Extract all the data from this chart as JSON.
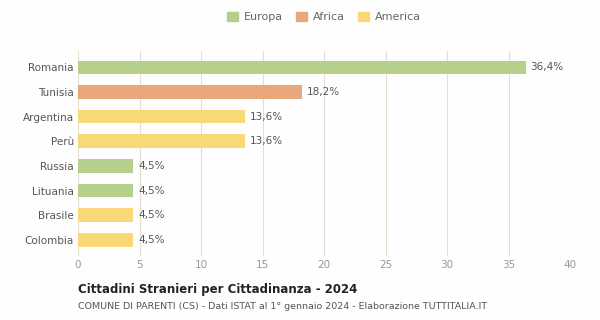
{
  "categories": [
    "Romania",
    "Tunisia",
    "Argentina",
    "Perù",
    "Russia",
    "Lituania",
    "Brasile",
    "Colombia"
  ],
  "values": [
    36.4,
    18.2,
    13.6,
    13.6,
    4.5,
    4.5,
    4.5,
    4.5
  ],
  "labels": [
    "36,4%",
    "18,2%",
    "13,6%",
    "13,6%",
    "4,5%",
    "4,5%",
    "4,5%",
    "4,5%"
  ],
  "colors": [
    "#b5d08a",
    "#e8a87c",
    "#f9d878",
    "#f9d878",
    "#b5d08a",
    "#b5d08a",
    "#f9d878",
    "#f9d878"
  ],
  "legend_labels": [
    "Europa",
    "Africa",
    "America"
  ],
  "legend_colors": [
    "#b5d08a",
    "#e8a87c",
    "#f9d878"
  ],
  "title": "Cittadini Stranieri per Cittadinanza - 2024",
  "subtitle": "COMUNE DI PARENTI (CS) - Dati ISTAT al 1° gennaio 2024 - Elaborazione TUTTITALIA.IT",
  "xlim": [
    0,
    40
  ],
  "xticks": [
    0,
    5,
    10,
    15,
    20,
    25,
    30,
    35,
    40
  ],
  "background_color": "#fefefe",
  "grid_color": "#e0e0d0"
}
